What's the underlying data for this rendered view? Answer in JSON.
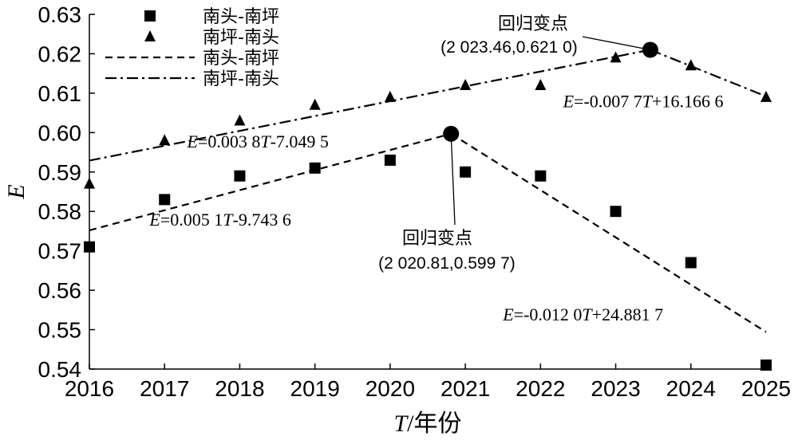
{
  "chart_data": {
    "type": "scatter",
    "xlabel": "T/年份",
    "ylabel": "E",
    "xlim": [
      2016,
      2025
    ],
    "ylim": [
      0.54,
      0.63
    ],
    "x_ticks": [
      "2016",
      "2017",
      "2018",
      "2019",
      "2020",
      "2021",
      "2022",
      "2023",
      "2024",
      "2025"
    ],
    "y_ticks": [
      "0.54",
      "0.55",
      "0.56",
      "0.57",
      "0.58",
      "0.59",
      "0.60",
      "0.61",
      "0.62",
      "0.63"
    ],
    "grid": false,
    "legend_position": "top-left",
    "series": [
      {
        "name": "南头-南坪",
        "marker": "square",
        "x": [
          2016,
          2017,
          2018,
          2019,
          2020,
          2021,
          2022,
          2023,
          2024,
          2025
        ],
        "y": [
          0.571,
          0.583,
          0.589,
          0.591,
          0.593,
          0.59,
          0.589,
          0.58,
          0.567,
          0.541
        ]
      },
      {
        "name": "南坪-南头",
        "marker": "triangle",
        "x": [
          2016,
          2017,
          2018,
          2019,
          2020,
          2021,
          2022,
          2023,
          2024,
          2025
        ],
        "y": [
          0.587,
          0.598,
          0.603,
          0.607,
          0.609,
          0.612,
          0.612,
          0.619,
          0.617,
          0.609
        ]
      }
    ],
    "fit_lines": [
      {
        "name": "南头-南坪",
        "style": "dashed",
        "segments": [
          {
            "x": [
              2016,
              2020.81
            ],
            "y": [
              0.5752,
              0.5997
            ]
          },
          {
            "x": [
              2020.81,
              2025
            ],
            "y": [
              0.5997,
              0.5494
            ]
          }
        ]
      },
      {
        "name": "南坪-南头",
        "style": "dashdot",
        "segments": [
          {
            "x": [
              2016,
              2023.46
            ],
            "y": [
              0.5929,
              0.621
            ]
          },
          {
            "x": [
              2023.46,
              2025
            ],
            "y": [
              0.621,
              0.6092
            ]
          }
        ]
      }
    ],
    "breakpoints": [
      {
        "x": 2020.81,
        "y": 0.5997,
        "label": "回归变点",
        "coord_text": "(2 020.81,0.599 7)"
      },
      {
        "x": 2023.46,
        "y": 0.621,
        "label": "回归变点",
        "coord_text": "(2 023.46,0.621 0)"
      }
    ],
    "equations": [
      {
        "text": "E=0.003 8T-7.049 5",
        "anchor_x": 2017.3,
        "anchor_y": 0.5962
      },
      {
        "text": "E=0.005 1T-9.743 6",
        "anchor_x": 2016.8,
        "anchor_y": 0.5764
      },
      {
        "text": "E=-0.007 7T+16.166 6",
        "anchor_x": 2022.3,
        "anchor_y": 0.6064
      },
      {
        "text": "E=-0.012 0T+24.881 7",
        "anchor_x": 2021.5,
        "anchor_y": 0.5523
      }
    ]
  },
  "colors": {
    "ink": "#000000",
    "background": "#ffffff"
  }
}
